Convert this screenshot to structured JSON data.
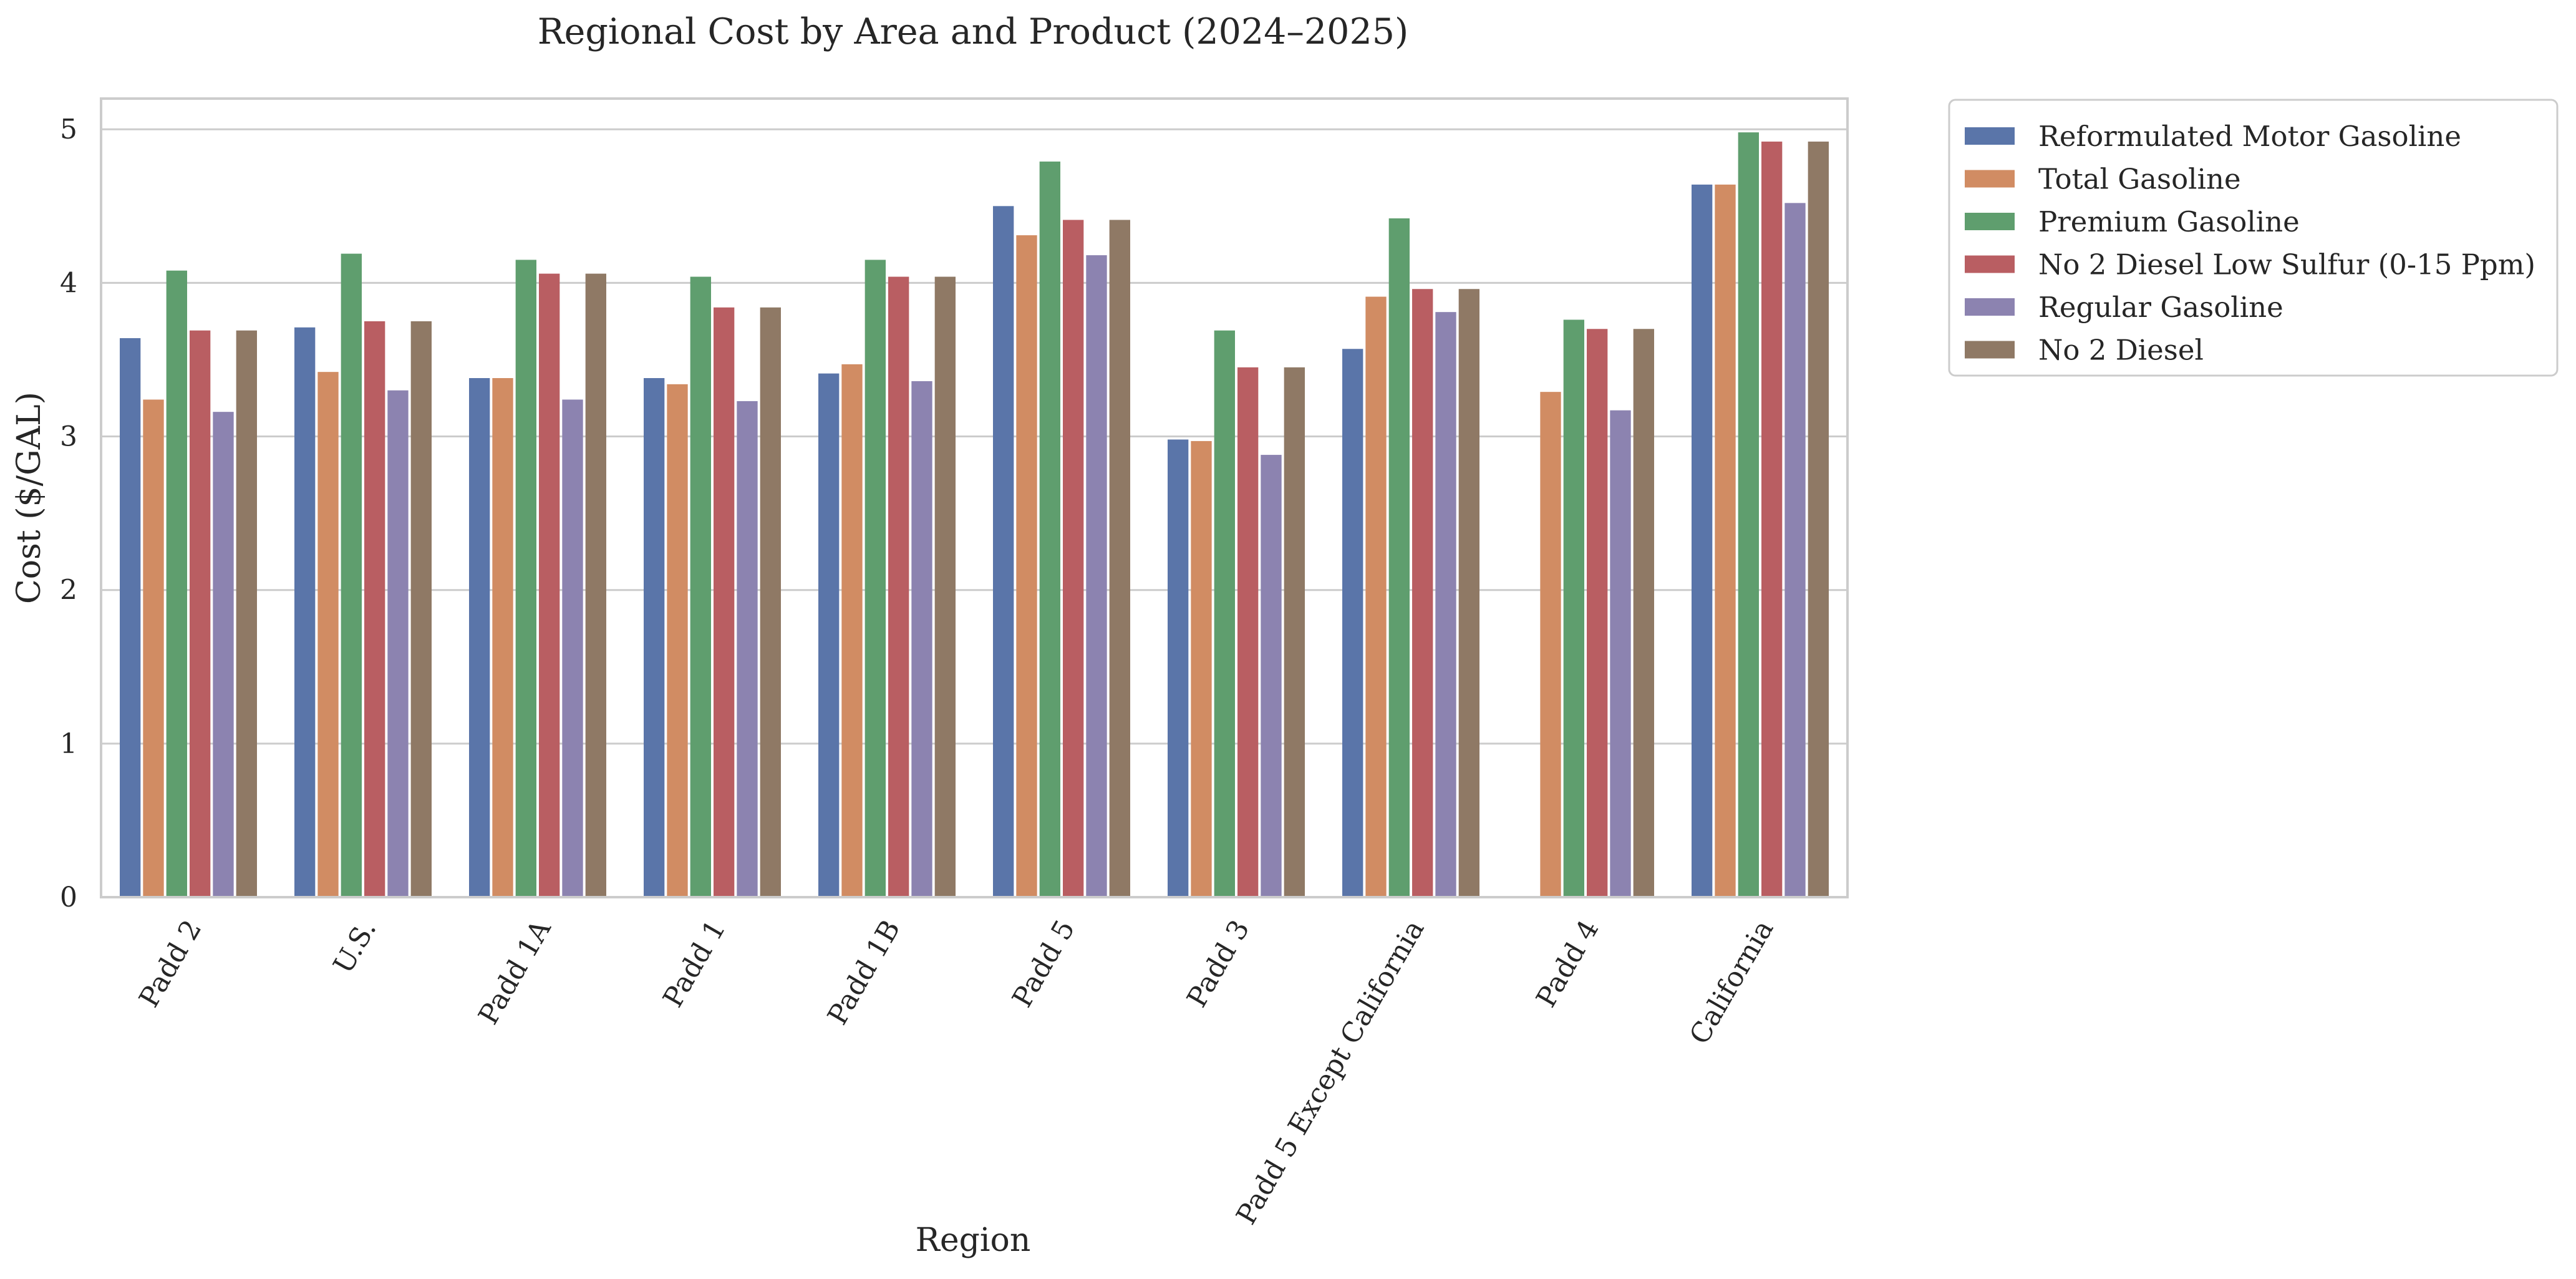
{
  "chart_data": {
    "type": "bar",
    "title": "Regional Cost by Area and Product (2024–2025)",
    "xlabel": "Region",
    "ylabel": "Cost ($/GAL)",
    "ylim": [
      0,
      5.2
    ],
    "yticks": [
      0,
      1,
      2,
      3,
      4,
      5
    ],
    "grid": true,
    "legend_position": "outside-top-right",
    "categories": [
      "Padd 2",
      "U.S.",
      "Padd 1A",
      "Padd 1",
      "Padd 1B",
      "Padd 5",
      "Padd 3",
      "Padd 5 Except California",
      "Padd 4",
      "California"
    ],
    "series": [
      {
        "name": "Reformulated Motor Gasoline",
        "color": "#5a75a9",
        "values": [
          3.64,
          3.71,
          3.38,
          3.38,
          3.41,
          4.5,
          2.98,
          3.57,
          null,
          4.64
        ]
      },
      {
        "name": "Total Gasoline",
        "color": "#d18c63",
        "values": [
          3.24,
          3.42,
          3.38,
          3.34,
          3.47,
          4.31,
          2.97,
          3.91,
          3.29,
          4.64
        ]
      },
      {
        "name": "Premium Gasoline",
        "color": "#5f9e6e",
        "values": [
          4.08,
          4.19,
          4.15,
          4.04,
          4.15,
          4.79,
          3.69,
          4.42,
          3.76,
          4.98
        ]
      },
      {
        "name": "No 2 Diesel Low Sulfur (0-15 Ppm)",
        "color": "#b95e62",
        "values": [
          3.69,
          3.75,
          4.06,
          3.84,
          4.04,
          4.41,
          3.45,
          3.96,
          3.7,
          4.92
        ]
      },
      {
        "name": "Regular Gasoline",
        "color": "#8c83b0",
        "values": [
          3.16,
          3.3,
          3.24,
          3.23,
          3.36,
          4.18,
          2.88,
          3.81,
          3.17,
          4.52
        ]
      },
      {
        "name": "No 2 Diesel",
        "color": "#8f7965",
        "values": [
          3.69,
          3.75,
          4.06,
          3.84,
          4.04,
          4.41,
          3.45,
          3.96,
          3.7,
          4.92
        ]
      }
    ]
  }
}
